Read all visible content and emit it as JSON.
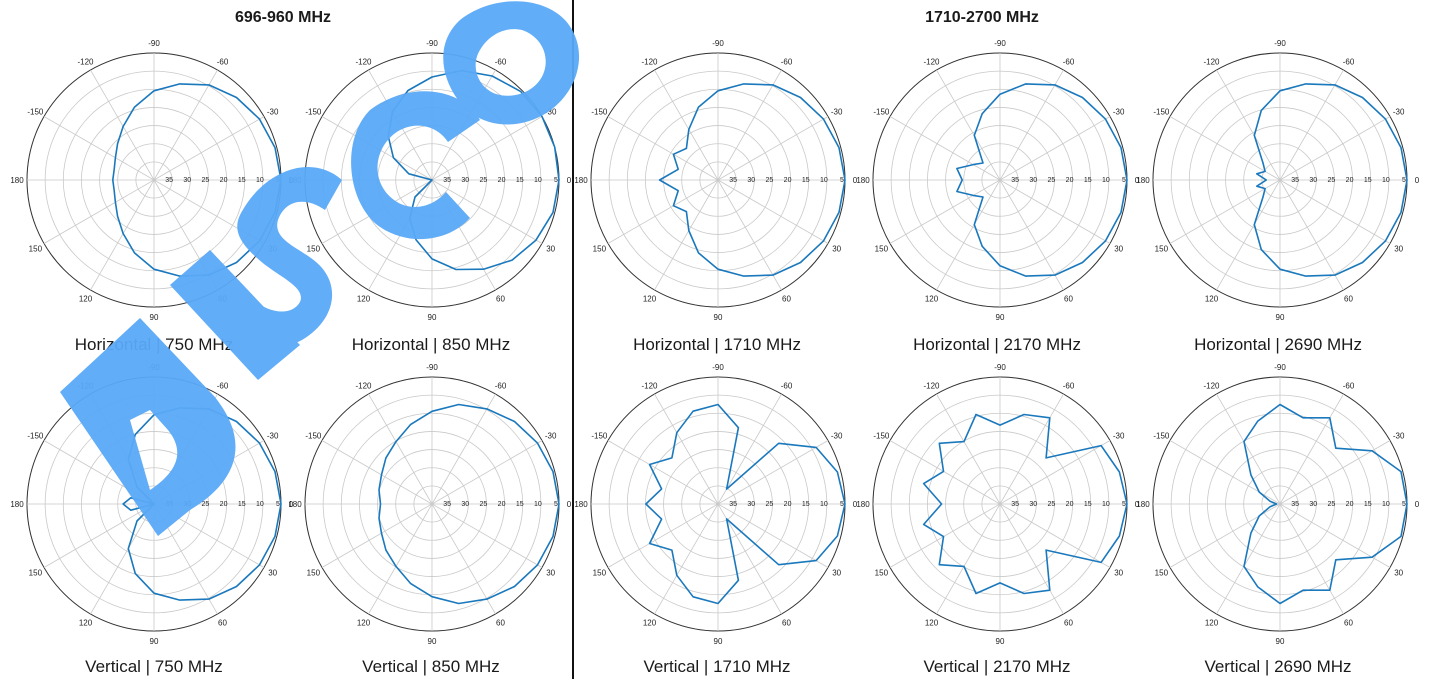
{
  "bands": [
    {
      "title": "696-960 MHz"
    },
    {
      "title": "1710-2700 MHz"
    }
  ],
  "watermark": {
    "text": "DISCO",
    "color": "#5aa9f7"
  },
  "colors": {
    "trace": "#1a78bd",
    "grid": "#c9c9c9",
    "outer": "#333333"
  },
  "chart_data": [
    {
      "type": "line",
      "subtype": "polar",
      "title": "Horizontal  |  750 MHz",
      "angle_ticks": [
        "-90",
        "-60",
        "-30",
        "0",
        "30",
        "60",
        "90",
        "120",
        "150",
        "180",
        "-150",
        "-120"
      ],
      "radial_ticks": [
        "35",
        "30",
        "25",
        "20",
        "15",
        "10",
        "5"
      ],
      "series": [
        {
          "angles": [
            0,
            15,
            30,
            45,
            60,
            75,
            90,
            105,
            120,
            135,
            150,
            165,
            180,
            195,
            210,
            225,
            240,
            255,
            270,
            285,
            300,
            315,
            330,
            345
          ],
          "values": [
            0,
            0.5,
            1.5,
            3,
            5,
            8,
            11,
            15,
            19,
            22,
            24,
            25,
            25,
            25,
            24,
            22,
            19,
            15,
            11,
            8,
            5,
            3,
            1.5,
            0.5
          ]
        }
      ]
    },
    {
      "type": "line",
      "subtype": "polar",
      "title": "Horizontal  |  850 MHz",
      "angle_ticks": [
        "-90",
        "-60",
        "-30",
        "0",
        "30",
        "60",
        "90",
        "120",
        "150",
        "180",
        "-150",
        "-120"
      ],
      "radial_ticks": [
        "35",
        "30",
        "25",
        "20",
        "15",
        "10",
        "5"
      ],
      "series": [
        {
          "angles": [
            0,
            15,
            30,
            45,
            60,
            75,
            90,
            105,
            120,
            135,
            150,
            165,
            180,
            195,
            210,
            225,
            240,
            255,
            270,
            285,
            300,
            315,
            330,
            345
          ],
          "values": [
            0,
            0.5,
            2,
            4,
            7,
            10,
            14,
            19,
            24,
            30,
            38,
            40,
            38,
            30,
            24,
            19,
            14,
            10,
            7,
            4,
            2,
            0.5,
            0,
            0
          ]
        }
      ]
    },
    {
      "type": "line",
      "subtype": "polar",
      "title": "Horizontal  |  1710 MHz",
      "angle_ticks": [
        "-90",
        "-60",
        "-30",
        "0",
        "30",
        "60",
        "90",
        "120",
        "150",
        "180",
        "-150",
        "-120"
      ],
      "radial_ticks": [
        "35",
        "30",
        "25",
        "20",
        "15",
        "10",
        "5"
      ],
      "series": [
        {
          "angles": [
            0,
            15,
            30,
            45,
            60,
            75,
            90,
            105,
            120,
            135,
            150,
            165,
            180,
            195,
            210,
            225,
            240,
            255,
            270,
            285,
            300,
            315,
            330,
            345
          ],
          "values": [
            0,
            0.5,
            1.5,
            3,
            5,
            8,
            11,
            15,
            20,
            24,
            22,
            25,
            20,
            25,
            22,
            24,
            20,
            15,
            11,
            8,
            5,
            3,
            1.5,
            0.5
          ]
        }
      ]
    },
    {
      "type": "line",
      "subtype": "polar",
      "title": "Horizontal  |  2170 MHz",
      "angle_ticks": [
        "-90",
        "-60",
        "-30",
        "0",
        "30",
        "60",
        "90",
        "120",
        "150",
        "180",
        "-150",
        "-120"
      ],
      "radial_ticks": [
        "35",
        "30",
        "25",
        "20",
        "15",
        "10",
        "5"
      ],
      "series": [
        {
          "angles": [
            0,
            15,
            30,
            45,
            60,
            75,
            90,
            105,
            120,
            135,
            150,
            165,
            180,
            195,
            210,
            225,
            240,
            255,
            270,
            285,
            300,
            315,
            330,
            345
          ],
          "values": [
            0,
            0.5,
            1.5,
            3,
            5,
            8,
            12,
            17,
            22,
            30,
            28,
            24,
            26,
            24,
            28,
            30,
            22,
            17,
            12,
            8,
            5,
            3,
            1.5,
            0.5
          ]
        }
      ]
    },
    {
      "type": "line",
      "subtype": "polar",
      "title": "Horizontal  |  2690 MHz",
      "angle_ticks": [
        "-90",
        "-60",
        "-30",
        "0",
        "30",
        "60",
        "90",
        "120",
        "150",
        "180",
        "-150",
        "-120"
      ],
      "radial_ticks": [
        "35",
        "30",
        "25",
        "20",
        "15",
        "10",
        "5"
      ],
      "series": [
        {
          "angles": [
            0,
            15,
            30,
            45,
            60,
            75,
            90,
            105,
            120,
            135,
            150,
            165,
            180,
            195,
            210,
            225,
            240,
            255,
            270,
            285,
            300,
            315,
            330,
            345
          ],
          "values": [
            0,
            0.5,
            1.5,
            3,
            5,
            8,
            11,
            16,
            22,
            30,
            32,
            30,
            33,
            30,
            32,
            30,
            22,
            16,
            11,
            8,
            5,
            3,
            1.5,
            0.5
          ]
        }
      ]
    },
    {
      "type": "line",
      "subtype": "polar",
      "title": "Vertical  |  750 MHz",
      "angle_ticks": [
        "-90",
        "-60",
        "-30",
        "0",
        "30",
        "60",
        "90",
        "120",
        "150",
        "180",
        "-150",
        "-120"
      ],
      "radial_ticks": [
        "35",
        "30",
        "25",
        "20",
        "15",
        "10",
        "5"
      ],
      "series": [
        {
          "angles": [
            0,
            15,
            30,
            45,
            60,
            75,
            90,
            105,
            120,
            135,
            150,
            165,
            180,
            195,
            210,
            225,
            240,
            255,
            270,
            285,
            300,
            315,
            330,
            345
          ],
          "values": [
            0,
            0.5,
            1.5,
            3,
            5,
            8,
            11,
            16,
            22,
            30,
            38,
            30,
            28,
            30,
            38,
            30,
            22,
            16,
            11,
            8,
            5,
            3,
            1.5,
            0.5
          ]
        }
      ]
    },
    {
      "type": "line",
      "subtype": "polar",
      "title": "Vertical  |  850 MHz",
      "angle_ticks": [
        "-90",
        "-60",
        "-30",
        "0",
        "30",
        "60",
        "90",
        "120",
        "150",
        "180",
        "-150",
        "-120"
      ],
      "radial_ticks": [
        "35",
        "30",
        "25",
        "20",
        "15",
        "10",
        "5"
      ],
      "series": [
        {
          "angles": [
            0,
            15,
            30,
            45,
            60,
            75,
            90,
            105,
            120,
            135,
            150,
            165,
            180,
            195,
            210,
            225,
            240,
            255,
            270,
            285,
            300,
            315,
            330,
            345
          ],
          "values": [
            0,
            0.5,
            1.5,
            3,
            5,
            7,
            10,
            13,
            16,
            18,
            20,
            21,
            22,
            21,
            20,
            18,
            16,
            13,
            10,
            7,
            5,
            3,
            1.5,
            0.5
          ]
        }
      ]
    },
    {
      "type": "line",
      "subtype": "polar",
      "title": "Vertical  |  1710 MHz",
      "angle_ticks": [
        "-90",
        "-60",
        "-30",
        "0",
        "30",
        "60",
        "90",
        "120",
        "150",
        "180",
        "-150",
        "-120"
      ],
      "radial_ticks": [
        "35",
        "30",
        "25",
        "20",
        "15",
        "10",
        "5"
      ],
      "series": [
        {
          "angles": [
            0,
            15,
            30,
            45,
            60,
            75,
            90,
            105,
            120,
            135,
            150,
            165,
            180,
            195,
            210,
            225,
            240,
            255,
            270,
            285,
            300,
            315,
            330,
            345
          ],
          "values": [
            0,
            1,
            4,
            12,
            32,
            14,
            8,
            9,
            13,
            18,
            14,
            20,
            16,
            20,
            14,
            18,
            13,
            9,
            8,
            14,
            32,
            12,
            4,
            1
          ]
        }
      ]
    },
    {
      "type": "line",
      "subtype": "polar",
      "title": "Vertical  |  2170 MHz",
      "angle_ticks": [
        "-90",
        "-60",
        "-30",
        "0",
        "30",
        "60",
        "90",
        "120",
        "150",
        "180",
        "-150",
        "-120"
      ],
      "radial_ticks": [
        "35",
        "30",
        "25",
        "20",
        "15",
        "10",
        "5"
      ],
      "series": [
        {
          "angles": [
            0,
            15,
            30,
            45,
            60,
            75,
            90,
            105,
            120,
            135,
            150,
            165,
            180,
            195,
            210,
            225,
            240,
            255,
            270,
            285,
            300,
            315,
            330,
            345
          ],
          "values": [
            0,
            1,
            3,
            18,
            8,
            10,
            14,
            10,
            16,
            12,
            18,
            14,
            20,
            14,
            18,
            12,
            16,
            10,
            14,
            10,
            8,
            18,
            3,
            1
          ]
        }
      ]
    },
    {
      "type": "line",
      "subtype": "polar",
      "title": "Vertical  |  2690 MHz",
      "angle_ticks": [
        "-90",
        "-60",
        "-30",
        "0",
        "30",
        "60",
        "90",
        "120",
        "150",
        "180",
        "-150",
        "-120"
      ],
      "radial_ticks": [
        "35",
        "30",
        "25",
        "20",
        "15",
        "10",
        "5"
      ],
      "series": [
        {
          "angles": [
            0,
            15,
            30,
            45,
            60,
            75,
            90,
            105,
            120,
            135,
            150,
            165,
            180,
            195,
            210,
            225,
            240,
            255,
            270,
            285,
            300,
            315,
            330,
            345
          ],
          "values": [
            0,
            0.5,
            6,
            14,
            8,
            11,
            8,
            12,
            16,
            25,
            30,
            34,
            36,
            34,
            30,
            25,
            16,
            12,
            8,
            11,
            8,
            14,
            6,
            0.5
          ]
        }
      ]
    }
  ]
}
